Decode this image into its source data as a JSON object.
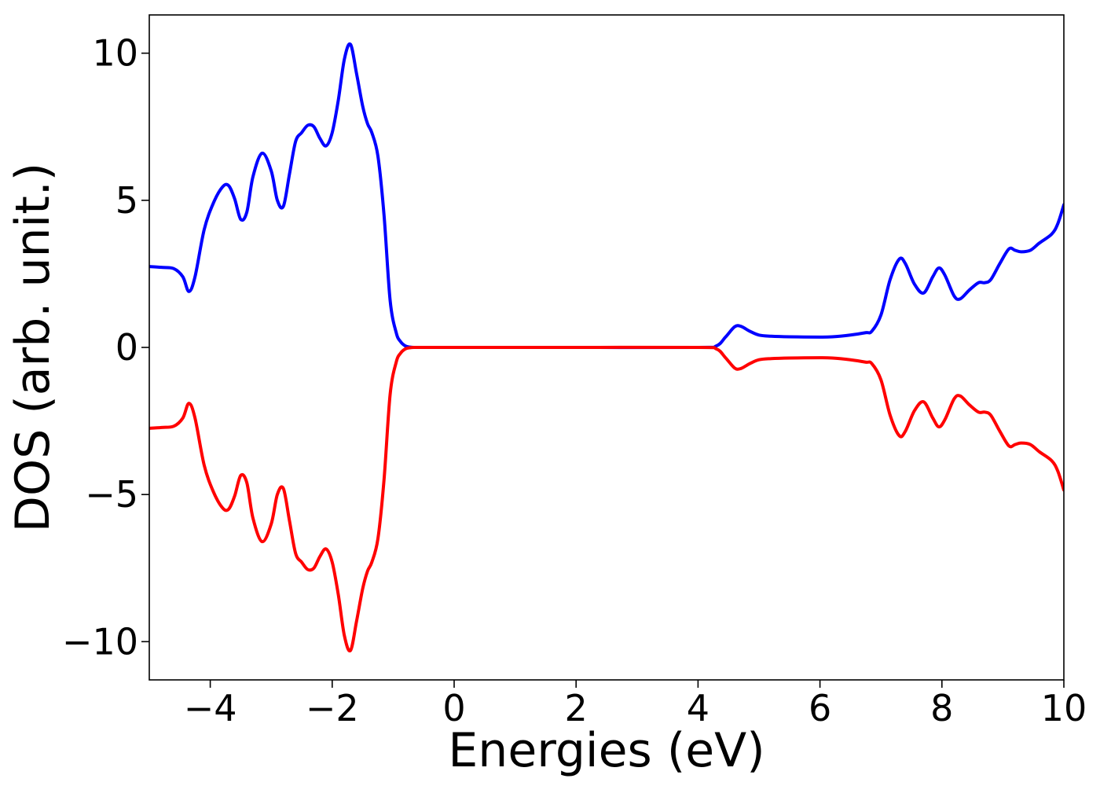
{
  "chart_data": {
    "type": "line",
    "title": "",
    "xlabel": "Energies (eV)",
    "ylabel": "DOS (arb. unit.)",
    "xlim": [
      -5,
      10
    ],
    "ylim": [
      -11.3,
      11.3
    ],
    "xticks": [
      -4,
      -2,
      0,
      2,
      4,
      6,
      8,
      10
    ],
    "xtick_labels": [
      "−4",
      "−2",
      "0",
      "2",
      "4",
      "6",
      "8",
      "10"
    ],
    "yticks": [
      -10,
      -5,
      0,
      5,
      10
    ],
    "ytick_labels": [
      "−10",
      "−5",
      "0",
      "5",
      "10"
    ],
    "grid": false,
    "legend": "none",
    "series": [
      {
        "color": "#0000ff",
        "x": [
          -5.0,
          -4.8,
          -4.6,
          -4.45,
          -4.35,
          -4.25,
          -4.1,
          -3.95,
          -3.8,
          -3.7,
          -3.6,
          -3.5,
          -3.4,
          -3.3,
          -3.15,
          -3.0,
          -2.9,
          -2.8,
          -2.7,
          -2.6,
          -2.5,
          -2.4,
          -2.3,
          -2.2,
          -2.1,
          -2.0,
          -1.9,
          -1.8,
          -1.7,
          -1.6,
          -1.5,
          -1.42,
          -1.35,
          -1.25,
          -1.15,
          -1.05,
          -0.95,
          -0.88,
          -0.8,
          -0.72,
          -0.65,
          -0.55,
          -0.45,
          0.0,
          2.0,
          4.0,
          4.3,
          4.45,
          4.6,
          4.7,
          4.85,
          5.0,
          5.2,
          5.5,
          6.0,
          6.2,
          6.5,
          6.75,
          6.85,
          7.0,
          7.15,
          7.3,
          7.4,
          7.55,
          7.7,
          7.85,
          7.95,
          8.05,
          8.2,
          8.3,
          8.45,
          8.6,
          8.7,
          8.8,
          8.95,
          9.1,
          9.2,
          9.3,
          9.45,
          9.6,
          9.8,
          9.9,
          10.0
        ],
        "y": [
          2.75,
          2.72,
          2.68,
          2.4,
          1.9,
          2.4,
          4.0,
          4.9,
          5.45,
          5.5,
          5.05,
          4.35,
          4.6,
          5.8,
          6.6,
          6.0,
          5.0,
          4.8,
          5.9,
          7.0,
          7.3,
          7.55,
          7.5,
          7.1,
          6.85,
          7.3,
          8.4,
          9.8,
          10.3,
          9.3,
          8.2,
          7.6,
          7.3,
          6.5,
          4.5,
          1.6,
          0.5,
          0.2,
          0.05,
          0.01,
          0.0,
          0.0,
          0.0,
          0.0,
          0.0,
          0.0,
          0.05,
          0.35,
          0.7,
          0.72,
          0.55,
          0.42,
          0.38,
          0.36,
          0.35,
          0.36,
          0.42,
          0.5,
          0.55,
          1.1,
          2.3,
          3.0,
          2.85,
          2.15,
          1.85,
          2.4,
          2.7,
          2.45,
          1.75,
          1.65,
          1.95,
          2.2,
          2.2,
          2.3,
          2.85,
          3.35,
          3.3,
          3.25,
          3.3,
          3.55,
          3.85,
          4.2,
          4.85
        ]
      },
      {
        "color": "#ff0000",
        "x": [
          -5.0,
          -4.8,
          -4.6,
          -4.45,
          -4.35,
          -4.25,
          -4.1,
          -3.95,
          -3.8,
          -3.7,
          -3.6,
          -3.5,
          -3.4,
          -3.3,
          -3.15,
          -3.0,
          -2.9,
          -2.8,
          -2.7,
          -2.6,
          -2.5,
          -2.4,
          -2.3,
          -2.2,
          -2.1,
          -2.0,
          -1.9,
          -1.8,
          -1.7,
          -1.6,
          -1.5,
          -1.42,
          -1.35,
          -1.25,
          -1.15,
          -1.05,
          -0.95,
          -0.88,
          -0.8,
          -0.72,
          -0.65,
          -0.55,
          -0.45,
          0.0,
          2.0,
          4.0,
          4.3,
          4.45,
          4.6,
          4.7,
          4.85,
          5.0,
          5.2,
          5.5,
          6.0,
          6.2,
          6.5,
          6.75,
          6.85,
          7.0,
          7.15,
          7.3,
          7.4,
          7.55,
          7.7,
          7.85,
          7.95,
          8.05,
          8.2,
          8.3,
          8.45,
          8.6,
          8.7,
          8.8,
          8.95,
          9.1,
          9.2,
          9.3,
          9.45,
          9.6,
          9.8,
          9.9,
          10.0
        ],
        "y": [
          -2.75,
          -2.72,
          -2.68,
          -2.4,
          -1.9,
          -2.4,
          -4.0,
          -4.9,
          -5.45,
          -5.5,
          -5.05,
          -4.35,
          -4.6,
          -5.8,
          -6.6,
          -6.0,
          -5.0,
          -4.8,
          -5.9,
          -7.0,
          -7.3,
          -7.55,
          -7.5,
          -7.1,
          -6.85,
          -7.3,
          -8.4,
          -9.8,
          -10.3,
          -9.3,
          -8.2,
          -7.6,
          -7.3,
          -6.5,
          -4.5,
          -1.6,
          -0.5,
          -0.2,
          -0.05,
          -0.01,
          0.0,
          0.0,
          0.0,
          0.0,
          0.0,
          0.0,
          -0.05,
          -0.35,
          -0.7,
          -0.72,
          -0.55,
          -0.42,
          -0.38,
          -0.36,
          -0.35,
          -0.36,
          -0.42,
          -0.5,
          -0.55,
          -1.1,
          -2.3,
          -3.0,
          -2.85,
          -2.15,
          -1.85,
          -2.4,
          -2.7,
          -2.45,
          -1.75,
          -1.65,
          -1.95,
          -2.2,
          -2.2,
          -2.3,
          -2.85,
          -3.35,
          -3.3,
          -3.25,
          -3.3,
          -3.55,
          -3.85,
          -4.2,
          -4.85
        ]
      }
    ]
  }
}
